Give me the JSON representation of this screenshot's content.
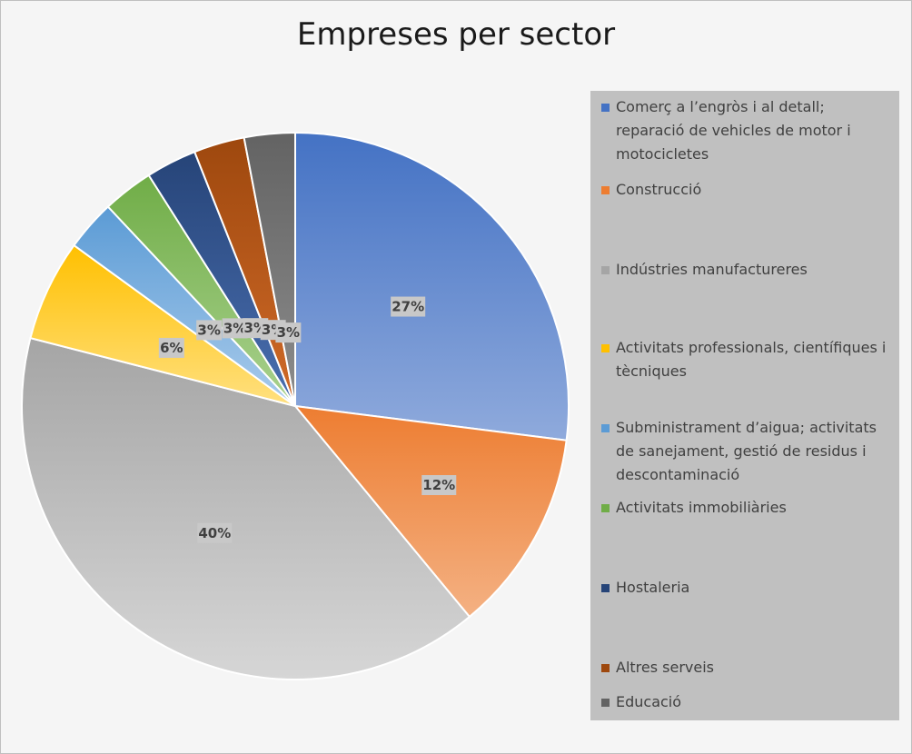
{
  "chart_data": {
    "type": "pie",
    "title": "Empreses per sector",
    "legend_position": "right",
    "slices": [
      {
        "label": "Comerç a l’engròs i al detall; reparació de vehicles de motor i motocicletes",
        "value": 27,
        "data_label": "27%",
        "color": "#4472c4",
        "color_light": "#8faadc"
      },
      {
        "label": "Construcció",
        "value": 12,
        "data_label": "12%",
        "color": "#ed7d31",
        "color_light": "#f4b183"
      },
      {
        "label": "Indústries manufactureres",
        "value": 40,
        "data_label": "40%",
        "color": "#a5a5a5",
        "color_light": "#d6d6d6"
      },
      {
        "label": "Activitats professionals, científiques i tècniques",
        "value": 6,
        "data_label": "6%",
        "color": "#ffc000",
        "color_light": "#ffe080"
      },
      {
        "label": "Subministrament d’aigua; activitats de sanejament, gestió de residus i descontaminació",
        "value": 3,
        "data_label": "3%",
        "color": "#5b9bd5",
        "color_light": "#a9cbeb"
      },
      {
        "label": "Activitats immobiliàries",
        "value": 3,
        "data_label": "3%",
        "color": "#70ad47",
        "color_light": "#a9d18e"
      },
      {
        "label": "Hostaleria",
        "value": 3,
        "data_label": "3%",
        "color": "#264478",
        "color_light": "#4a6fb0"
      },
      {
        "label": "Altres serveis",
        "value": 3,
        "data_label": "3%",
        "color": "#9e480e",
        "color_light": "#d06a28"
      },
      {
        "label": "Educació",
        "value": 3,
        "data_label": "3%",
        "color": "#636363",
        "color_light": "#8c8c8c"
      }
    ]
  }
}
